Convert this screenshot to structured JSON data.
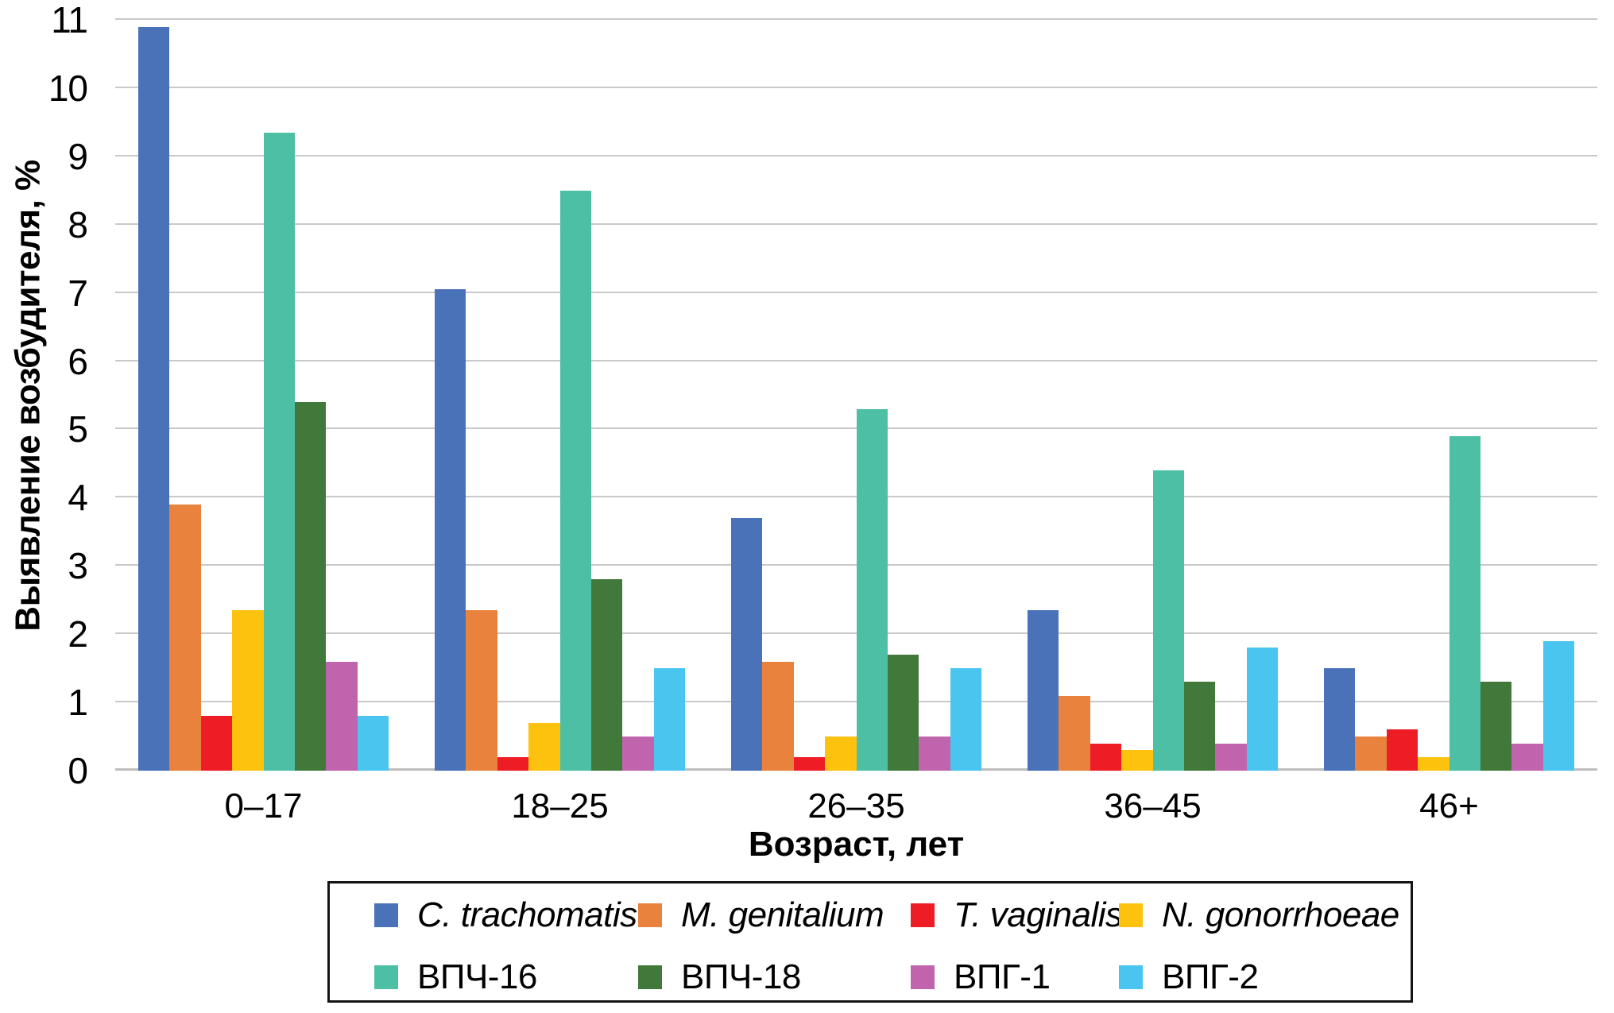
{
  "y_axis": {
    "title": "Выявление возбудителя, %",
    "ticks": [
      "0",
      "1",
      "2",
      "3",
      "4",
      "5",
      "6",
      "7",
      "8",
      "9",
      "10",
      "11"
    ]
  },
  "x_axis": {
    "title": "Возраст, лет"
  },
  "chart_data": {
    "type": "bar",
    "title": "",
    "categories": [
      "0–17",
      "18–25",
      "26–35",
      "36–45",
      "46+"
    ],
    "series": [
      {
        "name": "C. trachomatis",
        "color": "#4a72b8",
        "italic": true,
        "values": [
          10.9,
          7.05,
          3.7,
          2.35,
          1.5
        ]
      },
      {
        "name": "M. genitalium",
        "color": "#e8823c",
        "italic": true,
        "values": [
          3.9,
          2.35,
          1.6,
          1.1,
          0.5
        ]
      },
      {
        "name": "T. vaginalis",
        "color": "#ee1c25",
        "italic": true,
        "values": [
          0.8,
          0.2,
          0.2,
          0.4,
          0.6
        ]
      },
      {
        "name": "N. gonorrhoeae",
        "color": "#fdc20e",
        "italic": true,
        "values": [
          2.35,
          0.7,
          0.5,
          0.3,
          0.2
        ]
      },
      {
        "name": "ВПЧ-16",
        "color": "#4cbfa4",
        "italic": false,
        "values": [
          9.35,
          8.5,
          5.3,
          4.4,
          4.9
        ]
      },
      {
        "name": "ВПЧ-18",
        "color": "#41793a",
        "italic": false,
        "values": [
          5.4,
          2.8,
          1.7,
          1.3,
          1.3
        ]
      },
      {
        "name": "ВПГ-1",
        "color": "#c164ae",
        "italic": false,
        "values": [
          1.6,
          0.5,
          0.5,
          0.4,
          0.4
        ]
      },
      {
        "name": "ВПГ-2",
        "color": "#49c5ef",
        "italic": false,
        "values": [
          0.8,
          1.5,
          1.5,
          1.8,
          1.9
        ]
      }
    ],
    "xlabel": "Возраст, лет",
    "ylabel": "Выявление возбудителя, %",
    "ylim": [
      0,
      11
    ],
    "grid": true,
    "legend_position": "bottom",
    "legend_rows": 2,
    "legend_items_per_row": 4
  },
  "style": {
    "gridline_color": "#c9c9c9",
    "axis_line_color": "#bdbdbd",
    "legend_border_color": "#141414"
  }
}
